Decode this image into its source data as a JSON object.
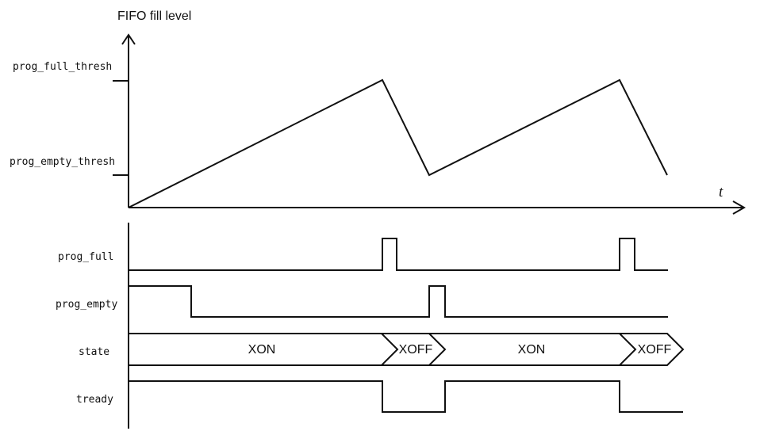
{
  "axes": {
    "y_title": "FIFO fill level",
    "x_title": "t",
    "levels": [
      {
        "label": "prog_full_thresh"
      },
      {
        "label": "prog_empty_thresh"
      }
    ]
  },
  "signals": [
    {
      "label": "prog_full"
    },
    {
      "label": "prog_empty"
    },
    {
      "label": "state",
      "segments": [
        "XON",
        "XOFF",
        "XON",
        "XOFF"
      ]
    },
    {
      "label": "tready"
    }
  ]
}
